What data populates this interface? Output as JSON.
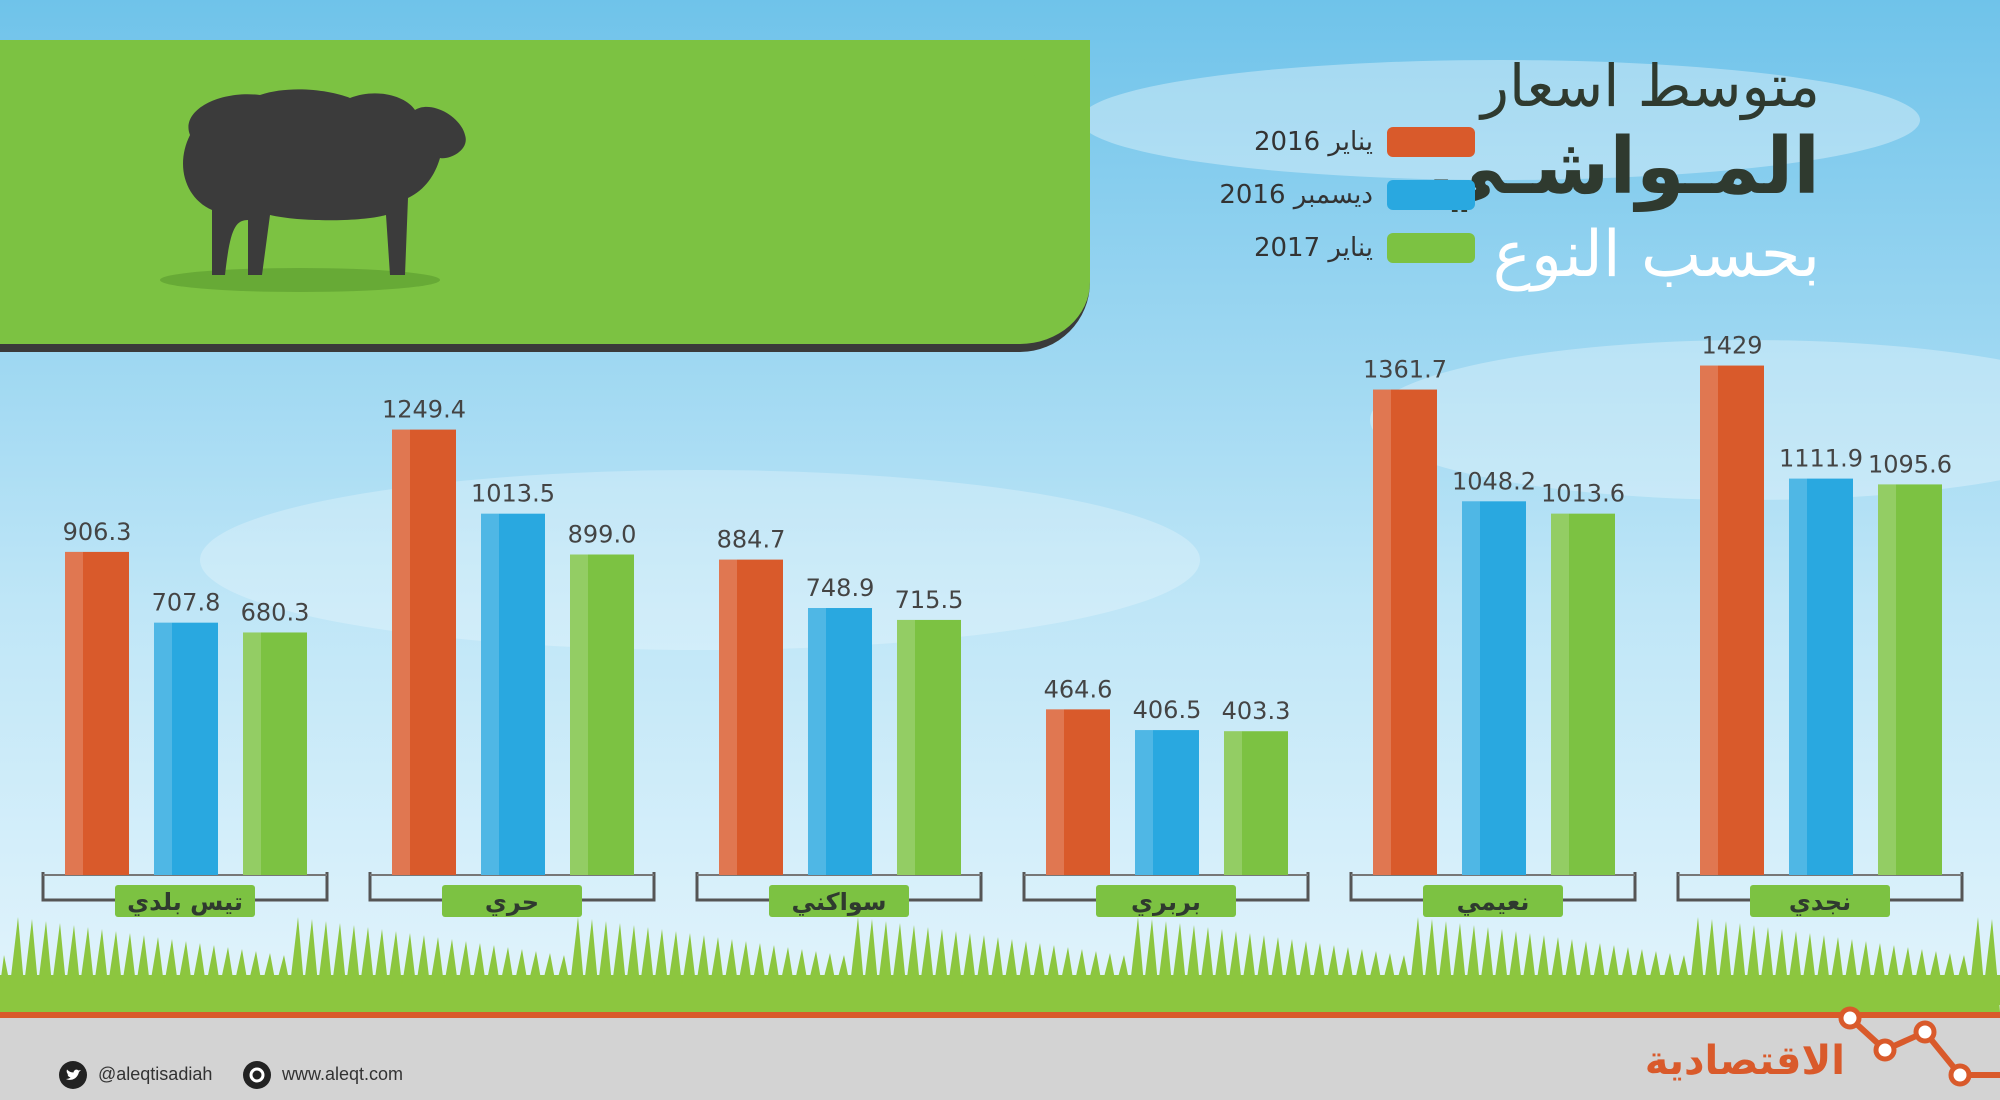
{
  "title": {
    "line1": "متوسط اسعار",
    "line2": "المـواشـي",
    "line3": "بحسب النوع"
  },
  "legend": [
    {
      "label": "يناير 2016",
      "color": "#d95a2b"
    },
    {
      "label": "ديسمبر 2016",
      "color": "#29a8e0"
    },
    {
      "label": "يناير 2017",
      "color": "#7cc242"
    }
  ],
  "footer": {
    "twitter": "@aleqtisadiah",
    "website": "www.aleqt.com",
    "logo": "الاقتصادية"
  },
  "chart_data": {
    "type": "bar",
    "categories": [
      "تيس بلدي",
      "حري",
      "سواكني",
      "بربري",
      "نعيمي",
      "نجدي"
    ],
    "series": [
      {
        "name": "يناير 2016",
        "color": "#d95a2b",
        "values": [
          906.3,
          1249.4,
          884.7,
          464.6,
          1361.7,
          1429
        ],
        "labels": [
          "906.3",
          "1249.4",
          "884.7",
          "464.6",
          "1361.7",
          "1429"
        ]
      },
      {
        "name": "ديسمبر 2016",
        "color": "#29a8e0",
        "values": [
          707.8,
          1013.5,
          748.9,
          406.5,
          1048.2,
          1111.9
        ],
        "labels": [
          "707.8",
          "1013.5",
          "748.9",
          "406.5",
          "1048.2",
          "1111.9"
        ]
      },
      {
        "name": "يناير 2017",
        "color": "#7cc242",
        "values": [
          680.3,
          899.0,
          715.5,
          403.3,
          1013.6,
          1095.6
        ],
        "labels": [
          "680.3",
          "899.0",
          "715.5",
          "403.3",
          "1013.6",
          "1095.6"
        ]
      }
    ],
    "grid": false,
    "legend_position": "top-right"
  }
}
